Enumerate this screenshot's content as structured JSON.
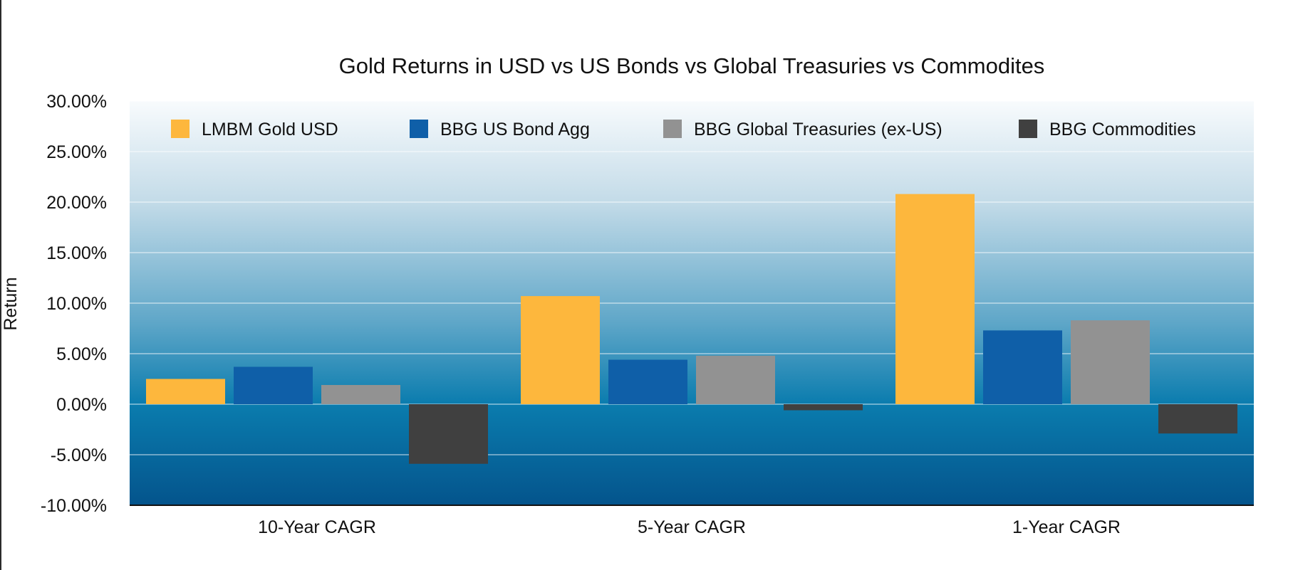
{
  "chart_data": {
    "type": "bar",
    "title": "Gold Returns in USD vs US Bonds vs Global Treasuries vs Commodites",
    "xlabel": "",
    "ylabel": "Return",
    "categories": [
      "10-Year CAGR",
      "5-Year CAGR",
      "1-Year CAGR"
    ],
    "ylim": [
      -10,
      30
    ],
    "ytick_step": 5,
    "ytick_labels": [
      "30.00%",
      "25.00%",
      "20.00%",
      "15.00%",
      "10.00%",
      "5.00%",
      "0.00%",
      "-5.00%",
      "-10.00%"
    ],
    "grid": true,
    "legend_position": "top",
    "series": [
      {
        "name": "LMBM Gold USD",
        "color": "#FDB73D",
        "values": [
          2.5,
          10.7,
          20.8
        ]
      },
      {
        "name": "BBG US Bond Agg",
        "color": "#0F5FA8",
        "values": [
          3.7,
          4.4,
          7.3
        ]
      },
      {
        "name": "BBG Global Treasuries (ex-US)",
        "color": "#929292",
        "values": [
          1.9,
          4.8,
          8.3
        ]
      },
      {
        "name": "BBG Commodities",
        "color": "#404040",
        "values": [
          -5.9,
          -0.6,
          -2.9
        ]
      }
    ]
  }
}
